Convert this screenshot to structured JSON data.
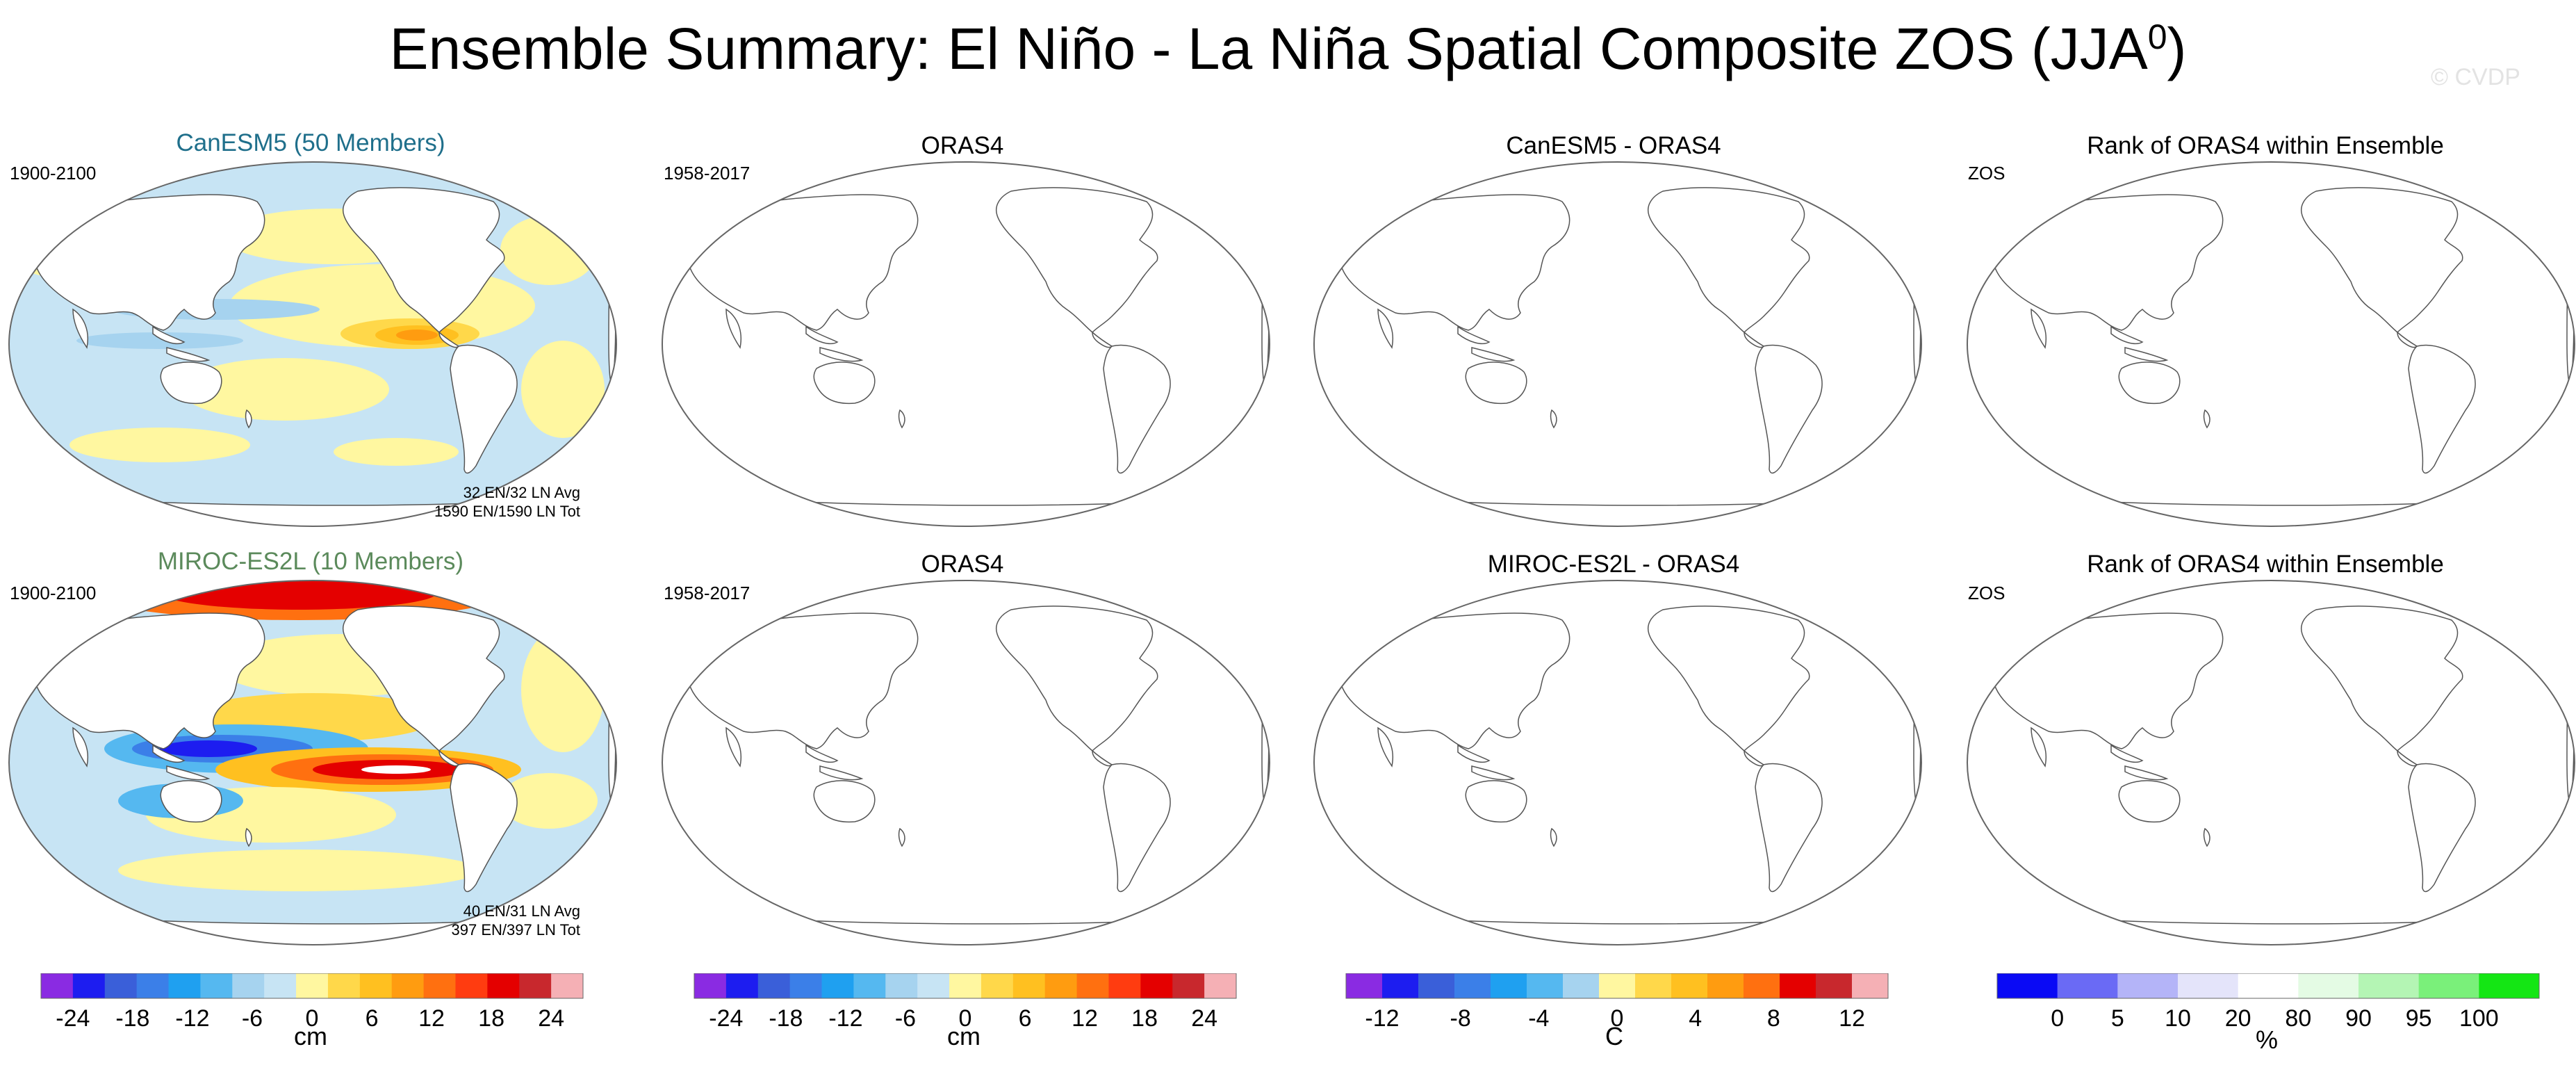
{
  "title": {
    "main": "Ensemble Summary: El Niño - La Niña Spatial Composite ZOS (JJA",
    "sup": "0",
    "close": ")"
  },
  "watermark": "© CVDP",
  "rows": [
    {
      "model": {
        "title": "CanESM5 (50 Members)",
        "color": "#1f6f8b",
        "period": "1900-2100",
        "stats_avg": "32 EN/32 LN Avg",
        "stats_tot": "1590 EN/1590 LN Tot"
      },
      "obs": {
        "title": "ORAS4",
        "period": "1958-2017"
      },
      "diff": {
        "title": "CanESM5 - ORAS4"
      },
      "rank": {
        "title": "Rank of ORAS4 within Ensemble",
        "var": "ZOS"
      }
    },
    {
      "model": {
        "title": "MIROC-ES2L (10 Members)",
        "color": "#5b8a5b",
        "period": "1900-2100",
        "stats_avg": "40 EN/31 LN Avg",
        "stats_tot": "397 EN/397 LN Tot"
      },
      "obs": {
        "title": "ORAS4",
        "period": "1958-2017"
      },
      "diff": {
        "title": "MIROC-ES2L - ORAS4"
      },
      "rank": {
        "title": "Rank of ORAS4 within Ensemble",
        "var": "ZOS"
      }
    }
  ],
  "colorbars": [
    {
      "unit": "cm",
      "ticks": [
        "-24",
        "-18",
        "-12",
        "-6",
        "0",
        "6",
        "12",
        "18",
        "24"
      ],
      "colors": [
        "#8a2be2",
        "#1d1df0",
        "#3a5fd9",
        "#3b7fe8",
        "#1fa0f0",
        "#55b8f0",
        "#a6d3ef",
        "#c7e4f4",
        "#fff7a0",
        "#ffd84a",
        "#ffc020",
        "#ff9c10",
        "#ff7010",
        "#ff3c10",
        "#e40000",
        "#c8282d",
        "#f5b0b5"
      ]
    },
    {
      "unit": "cm",
      "ticks": [
        "-24",
        "-18",
        "-12",
        "-6",
        "0",
        "6",
        "12",
        "18",
        "24"
      ],
      "colors": [
        "#8a2be2",
        "#1d1df0",
        "#3a5fd9",
        "#3b7fe8",
        "#1fa0f0",
        "#55b8f0",
        "#a6d3ef",
        "#c7e4f4",
        "#fff7a0",
        "#ffd84a",
        "#ffc020",
        "#ff9c10",
        "#ff7010",
        "#ff3c10",
        "#e40000",
        "#c8282d",
        "#f5b0b5"
      ]
    },
    {
      "unit": "C",
      "ticks": [
        "-12",
        "-8",
        "-4",
        "0",
        "4",
        "8",
        "12"
      ],
      "colors": [
        "#8a2be2",
        "#1d1df0",
        "#3a5fd9",
        "#3b7fe8",
        "#1fa0f0",
        "#55b8f0",
        "#a6d3ef",
        "#fff7a0",
        "#ffd84a",
        "#ffc020",
        "#ff9c10",
        "#ff7010",
        "#e40000",
        "#c8282d",
        "#f5b0b5"
      ]
    },
    {
      "unit": "%",
      "ticks": [
        "0",
        "5",
        "10",
        "20",
        "80",
        "90",
        "95",
        "100"
      ],
      "colors": [
        "#0a0af5",
        "#6a6af5",
        "#b4b4f8",
        "#e4e4fa",
        "#ffffff",
        "#e4fbe4",
        "#b4f5b4",
        "#7af07a",
        "#14e614"
      ]
    }
  ],
  "chart_data": {
    "type": "heatmap",
    "title": "Ensemble Summary: El Niño - La Niña Spatial Composite ZOS (JJA⁰)",
    "variable": "ZOS",
    "season": "JJA",
    "panels": [
      {
        "row": 1,
        "col": 1,
        "title": "CanESM5 (50 Members)",
        "period": "1900-2100",
        "filled": true,
        "scale": "cm",
        "notes": [
          "32 EN/32 LN Avg",
          "1590 EN/1590 LN Tot"
        ]
      },
      {
        "row": 1,
        "col": 2,
        "title": "ORAS4",
        "period": "1958-2017",
        "filled": false
      },
      {
        "row": 1,
        "col": 3,
        "title": "CanESM5 - ORAS4",
        "filled": false
      },
      {
        "row": 1,
        "col": 4,
        "title": "Rank of ORAS4 within Ensemble",
        "label": "ZOS",
        "filled": false
      },
      {
        "row": 2,
        "col": 1,
        "title": "MIROC-ES2L (10 Members)",
        "period": "1900-2100",
        "filled": true,
        "scale": "cm",
        "notes": [
          "40 EN/31 LN Avg",
          "397 EN/397 LN Tot"
        ]
      },
      {
        "row": 2,
        "col": 2,
        "title": "ORAS4",
        "period": "1958-2017",
        "filled": false
      },
      {
        "row": 2,
        "col": 3,
        "title": "MIROC-ES2L - ORAS4",
        "filled": false
      },
      {
        "row": 2,
        "col": 4,
        "title": "Rank of ORAS4 within Ensemble",
        "label": "ZOS",
        "filled": false
      }
    ],
    "colorbar_ranges": {
      "composite_cm": [
        -24,
        24
      ],
      "difference_C": [
        -12,
        12
      ],
      "rank_percent": [
        0,
        100
      ]
    }
  }
}
